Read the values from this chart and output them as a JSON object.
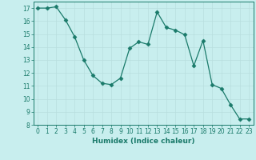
{
  "x": [
    0,
    1,
    2,
    3,
    4,
    5,
    6,
    7,
    8,
    9,
    10,
    11,
    12,
    13,
    14,
    15,
    16,
    17,
    18,
    19,
    20,
    21,
    22,
    23
  ],
  "y": [
    17,
    17,
    17.1,
    16.1,
    14.8,
    13.0,
    11.8,
    11.2,
    11.1,
    11.6,
    13.9,
    14.4,
    14.2,
    16.7,
    15.5,
    15.3,
    14.95,
    12.55,
    14.5,
    11.1,
    10.8,
    9.55,
    8.45,
    8.45
  ],
  "xlabel": "Humidex (Indice chaleur)",
  "xlim": [
    -0.5,
    23.5
  ],
  "ylim": [
    8,
    17.5
  ],
  "yticks": [
    8,
    9,
    10,
    11,
    12,
    13,
    14,
    15,
    16,
    17
  ],
  "xticks": [
    0,
    1,
    2,
    3,
    4,
    5,
    6,
    7,
    8,
    9,
    10,
    11,
    12,
    13,
    14,
    15,
    16,
    17,
    18,
    19,
    20,
    21,
    22,
    23
  ],
  "line_color": "#1a7a6a",
  "marker": "D",
  "marker_size": 2.5,
  "bg_color": "#c8eeee",
  "grid_color": "#b8dede",
  "label_fontsize": 6.5,
  "tick_fontsize": 5.5
}
